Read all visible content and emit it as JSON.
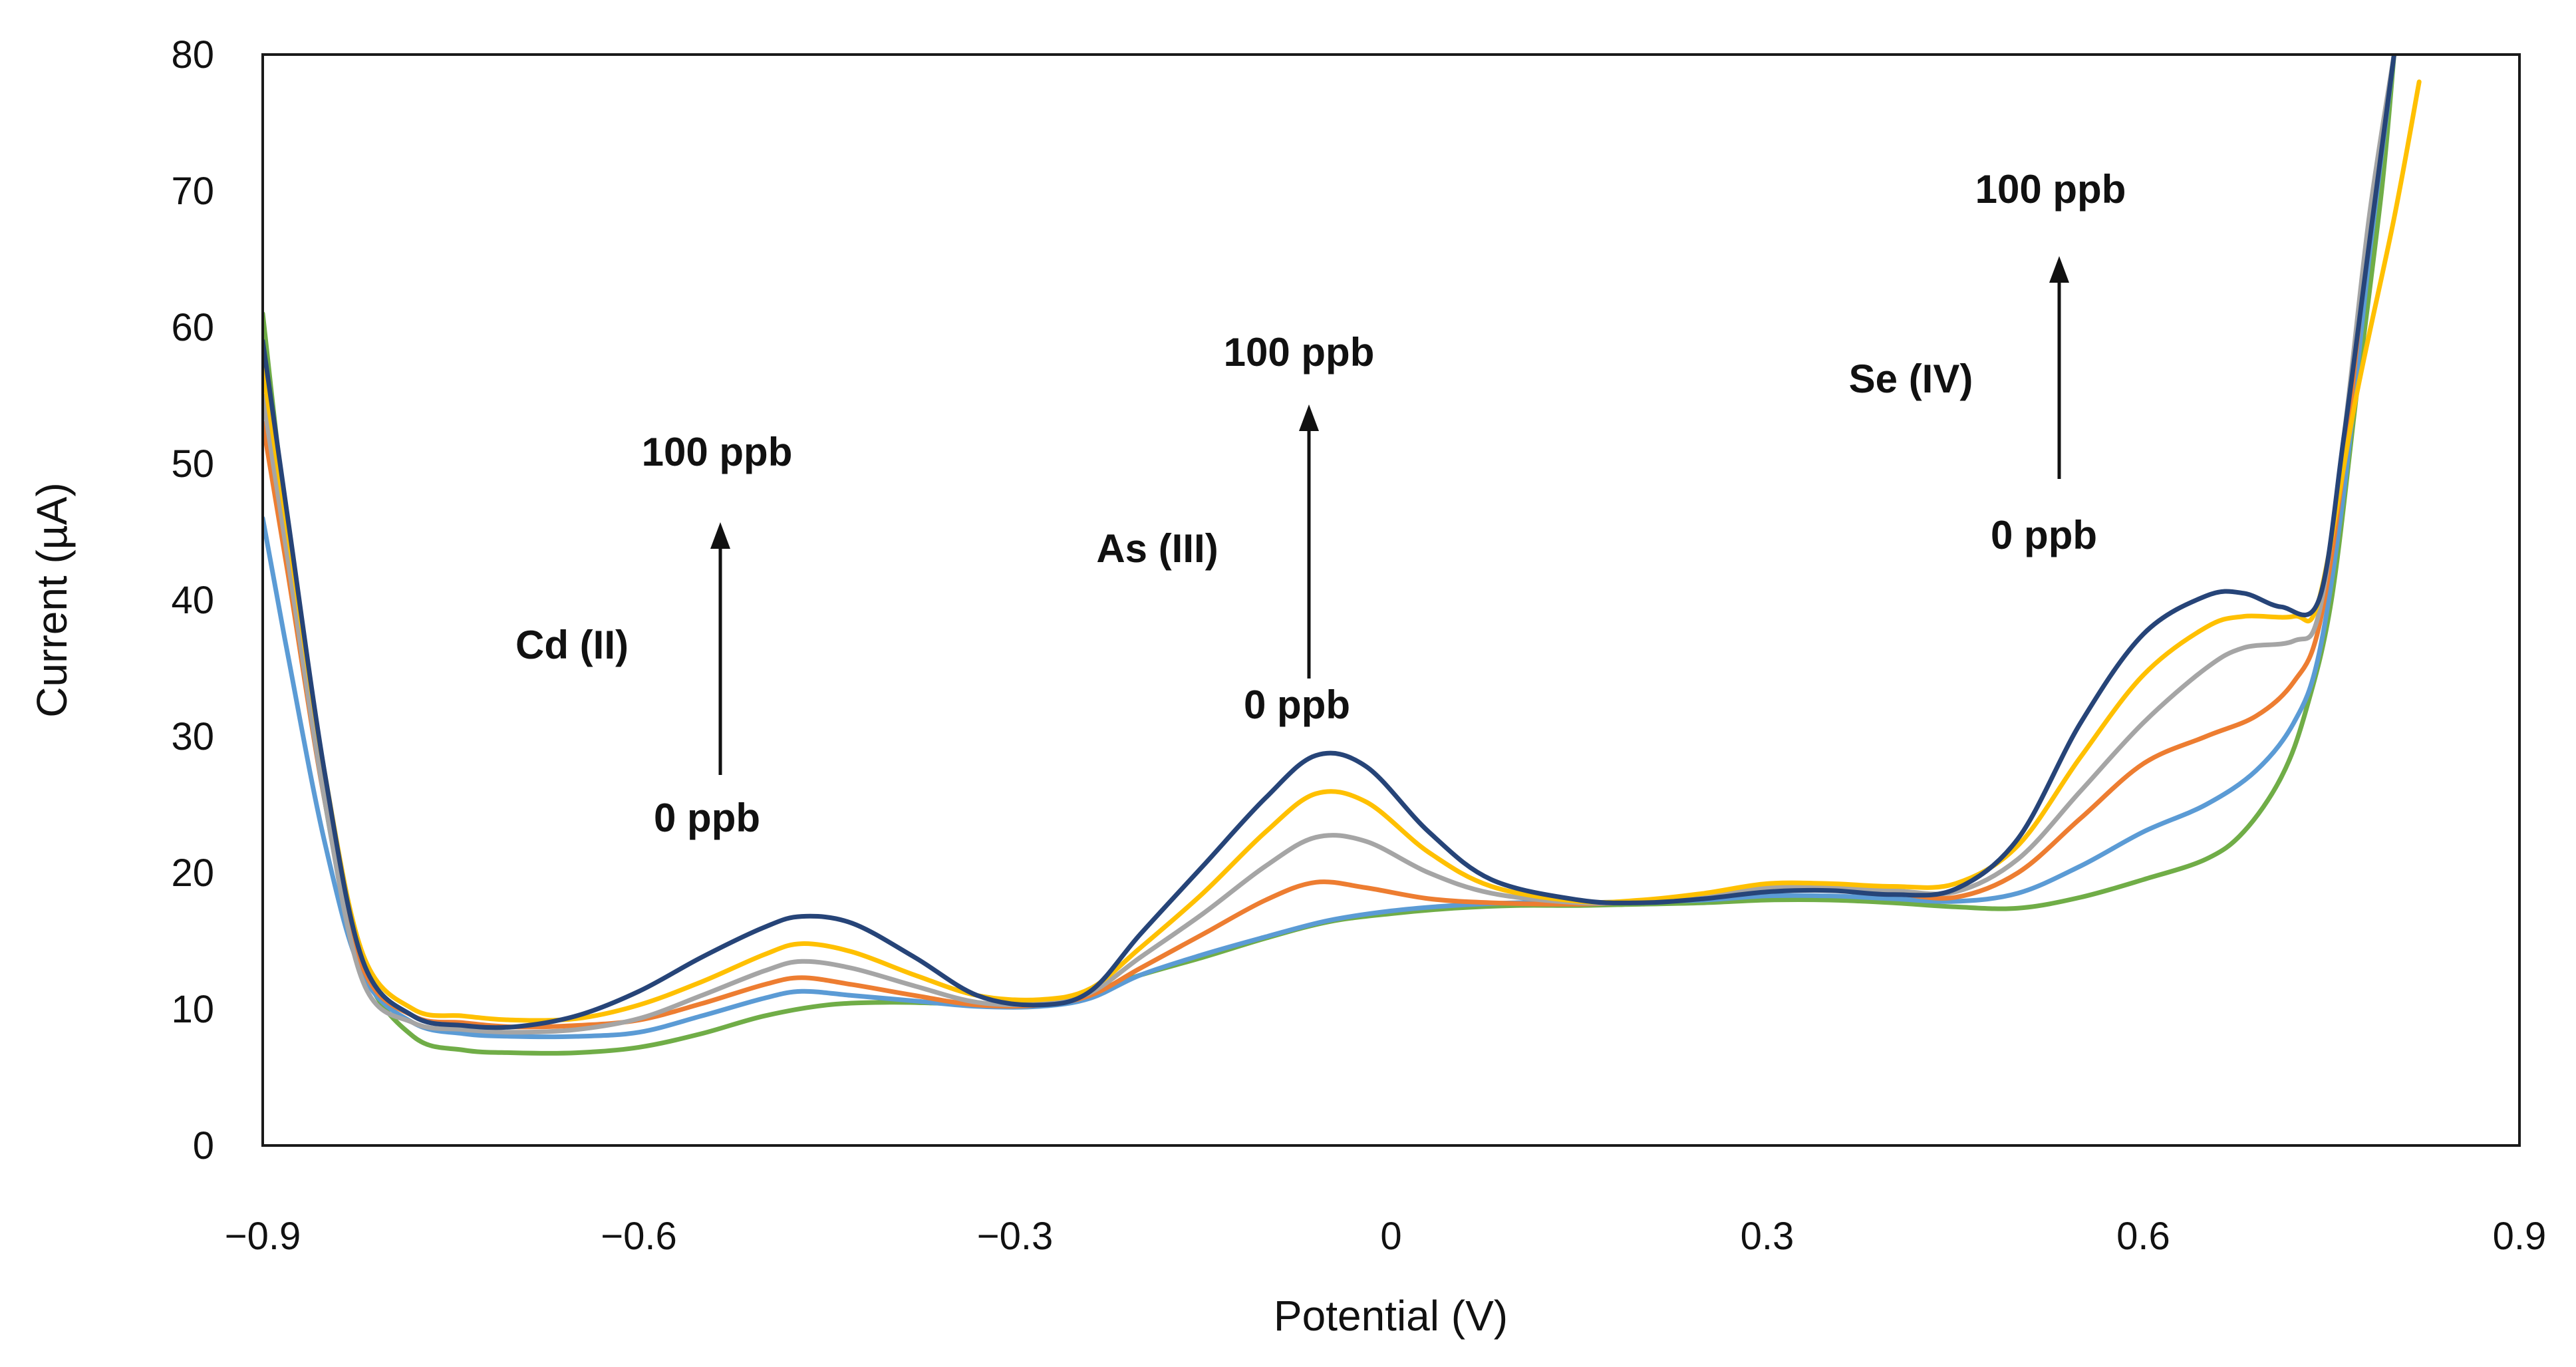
{
  "chart_data": {
    "type": "line",
    "title": "",
    "xlabel": "Potential (V)",
    "ylabel": "Current (µA)",
    "xlim": [
      -0.9,
      0.9
    ],
    "ylim": [
      0,
      80
    ],
    "x_ticks": [
      {
        "value": -0.9,
        "label": "−0.9"
      },
      {
        "value": -0.6,
        "label": "−0.6"
      },
      {
        "value": -0.3,
        "label": "−0.3"
      },
      {
        "value": 0,
        "label": "0"
      },
      {
        "value": 0.3,
        "label": "0.3"
      },
      {
        "value": 0.6,
        "label": "0.6"
      },
      {
        "value": 0.9,
        "label": "0.9"
      }
    ],
    "y_ticks": [
      {
        "value": 0,
        "label": "0"
      },
      {
        "value": 10,
        "label": "10"
      },
      {
        "value": 20,
        "label": "20"
      },
      {
        "value": 30,
        "label": "30"
      },
      {
        "value": 40,
        "label": "40"
      },
      {
        "value": 50,
        "label": "50"
      },
      {
        "value": 60,
        "label": "60"
      },
      {
        "value": 70,
        "label": "70"
      },
      {
        "value": 80,
        "label": "80"
      }
    ],
    "grid": false,
    "legend": "none",
    "series": [
      {
        "color": "#70ad47",
        "points": [
          [
            -0.9,
            61
          ],
          [
            -0.88,
            45
          ],
          [
            -0.85,
            25
          ],
          [
            -0.82,
            13
          ],
          [
            -0.78,
            8
          ],
          [
            -0.74,
            7
          ],
          [
            -0.7,
            6.8
          ],
          [
            -0.65,
            6.8
          ],
          [
            -0.6,
            7.2
          ],
          [
            -0.55,
            8.2
          ],
          [
            -0.5,
            9.5
          ],
          [
            -0.45,
            10.3
          ],
          [
            -0.4,
            10.5
          ],
          [
            -0.35,
            10.4
          ],
          [
            -0.3,
            10.3
          ],
          [
            -0.25,
            11
          ],
          [
            -0.2,
            12.5
          ],
          [
            -0.15,
            13.8
          ],
          [
            -0.1,
            15.2
          ],
          [
            -0.05,
            16.4
          ],
          [
            0,
            17
          ],
          [
            0.05,
            17.4
          ],
          [
            0.1,
            17.6
          ],
          [
            0.15,
            17.6
          ],
          [
            0.2,
            17.7
          ],
          [
            0.25,
            17.8
          ],
          [
            0.3,
            18
          ],
          [
            0.35,
            18
          ],
          [
            0.4,
            17.8
          ],
          [
            0.45,
            17.5
          ],
          [
            0.5,
            17.4
          ],
          [
            0.55,
            18.2
          ],
          [
            0.6,
            19.5
          ],
          [
            0.65,
            21
          ],
          [
            0.68,
            23
          ],
          [
            0.71,
            27
          ],
          [
            0.73,
            32
          ],
          [
            0.75,
            40
          ],
          [
            0.77,
            55
          ],
          [
            0.79,
            70
          ],
          [
            0.8,
            80
          ]
        ]
      },
      {
        "color": "#5b9bd5",
        "points": [
          [
            -0.9,
            46
          ],
          [
            -0.88,
            36
          ],
          [
            -0.85,
            22
          ],
          [
            -0.82,
            12.5
          ],
          [
            -0.78,
            9
          ],
          [
            -0.74,
            8.2
          ],
          [
            -0.7,
            8
          ],
          [
            -0.65,
            8
          ],
          [
            -0.6,
            8.3
          ],
          [
            -0.55,
            9.5
          ],
          [
            -0.5,
            10.8
          ],
          [
            -0.47,
            11.3
          ],
          [
            -0.43,
            11
          ],
          [
            -0.38,
            10.6
          ],
          [
            -0.33,
            10.2
          ],
          [
            -0.28,
            10.2
          ],
          [
            -0.24,
            10.8
          ],
          [
            -0.2,
            12.5
          ],
          [
            -0.15,
            14
          ],
          [
            -0.1,
            15.3
          ],
          [
            -0.05,
            16.5
          ],
          [
            0,
            17.2
          ],
          [
            0.05,
            17.6
          ],
          [
            0.1,
            17.8
          ],
          [
            0.15,
            17.8
          ],
          [
            0.2,
            17.9
          ],
          [
            0.25,
            18
          ],
          [
            0.3,
            18.3
          ],
          [
            0.35,
            18.3
          ],
          [
            0.4,
            18.1
          ],
          [
            0.45,
            17.9
          ],
          [
            0.5,
            18.5
          ],
          [
            0.55,
            20.5
          ],
          [
            0.6,
            23
          ],
          [
            0.65,
            25
          ],
          [
            0.69,
            27.5
          ],
          [
            0.72,
            31
          ],
          [
            0.74,
            36
          ],
          [
            0.76,
            48
          ],
          [
            0.78,
            65
          ],
          [
            0.8,
            80
          ]
        ]
      },
      {
        "color": "#ed7d31",
        "points": [
          [
            -0.9,
            53
          ],
          [
            -0.88,
            42
          ],
          [
            -0.85,
            25
          ],
          [
            -0.82,
            13
          ],
          [
            -0.78,
            9.5
          ],
          [
            -0.74,
            9
          ],
          [
            -0.7,
            8.7
          ],
          [
            -0.65,
            8.8
          ],
          [
            -0.6,
            9.2
          ],
          [
            -0.55,
            10.4
          ],
          [
            -0.5,
            11.8
          ],
          [
            -0.47,
            12.3
          ],
          [
            -0.43,
            11.8
          ],
          [
            -0.38,
            11
          ],
          [
            -0.33,
            10.3
          ],
          [
            -0.28,
            10.3
          ],
          [
            -0.24,
            11
          ],
          [
            -0.2,
            13
          ],
          [
            -0.15,
            15.5
          ],
          [
            -0.1,
            18
          ],
          [
            -0.06,
            19.3
          ],
          [
            -0.02,
            18.9
          ],
          [
            0.03,
            18.1
          ],
          [
            0.08,
            17.8
          ],
          [
            0.15,
            17.7
          ],
          [
            0.2,
            17.9
          ],
          [
            0.25,
            18.2
          ],
          [
            0.3,
            18.8
          ],
          [
            0.35,
            18.8
          ],
          [
            0.4,
            18.5
          ],
          [
            0.45,
            18.2
          ],
          [
            0.5,
            20
          ],
          [
            0.55,
            24
          ],
          [
            0.6,
            28
          ],
          [
            0.65,
            30
          ],
          [
            0.69,
            31.5
          ],
          [
            0.72,
            34
          ],
          [
            0.74,
            38
          ],
          [
            0.76,
            50
          ],
          [
            0.78,
            67
          ],
          [
            0.8,
            80
          ]
        ]
      },
      {
        "color": "#a5a5a5",
        "points": [
          [
            -0.9,
            55
          ],
          [
            -0.88,
            43
          ],
          [
            -0.85,
            25
          ],
          [
            -0.82,
            12
          ],
          [
            -0.78,
            9
          ],
          [
            -0.74,
            8.5
          ],
          [
            -0.7,
            8.3
          ],
          [
            -0.65,
            8.5
          ],
          [
            -0.6,
            9.3
          ],
          [
            -0.55,
            11
          ],
          [
            -0.5,
            12.8
          ],
          [
            -0.47,
            13.5
          ],
          [
            -0.43,
            13
          ],
          [
            -0.38,
            11.7
          ],
          [
            -0.33,
            10.5
          ],
          [
            -0.28,
            10.4
          ],
          [
            -0.24,
            11.2
          ],
          [
            -0.2,
            13.8
          ],
          [
            -0.15,
            17
          ],
          [
            -0.1,
            20.5
          ],
          [
            -0.06,
            22.6
          ],
          [
            -0.02,
            22.3
          ],
          [
            0.03,
            20
          ],
          [
            0.08,
            18.5
          ],
          [
            0.15,
            17.8
          ],
          [
            0.2,
            17.9
          ],
          [
            0.25,
            18.3
          ],
          [
            0.3,
            18.9
          ],
          [
            0.35,
            18.9
          ],
          [
            0.4,
            18.7
          ],
          [
            0.45,
            18.6
          ],
          [
            0.5,
            21
          ],
          [
            0.55,
            26
          ],
          [
            0.6,
            31
          ],
          [
            0.65,
            35
          ],
          [
            0.68,
            36.5
          ],
          [
            0.72,
            37
          ],
          [
            0.74,
            39
          ],
          [
            0.76,
            52
          ],
          [
            0.78,
            68
          ],
          [
            0.8,
            80
          ]
        ]
      },
      {
        "color": "#ffc000",
        "points": [
          [
            -0.9,
            57
          ],
          [
            -0.88,
            45
          ],
          [
            -0.85,
            27
          ],
          [
            -0.82,
            14
          ],
          [
            -0.78,
            10
          ],
          [
            -0.74,
            9.5
          ],
          [
            -0.7,
            9.2
          ],
          [
            -0.65,
            9.3
          ],
          [
            -0.6,
            10.3
          ],
          [
            -0.55,
            12
          ],
          [
            -0.5,
            14
          ],
          [
            -0.47,
            14.8
          ],
          [
            -0.43,
            14.2
          ],
          [
            -0.38,
            12.5
          ],
          [
            -0.33,
            11
          ],
          [
            -0.28,
            10.7
          ],
          [
            -0.24,
            11.5
          ],
          [
            -0.2,
            14.5
          ],
          [
            -0.15,
            18.5
          ],
          [
            -0.1,
            23
          ],
          [
            -0.06,
            25.8
          ],
          [
            -0.02,
            25.2
          ],
          [
            0.03,
            21.5
          ],
          [
            0.08,
            19
          ],
          [
            0.15,
            17.9
          ],
          [
            0.2,
            18
          ],
          [
            0.25,
            18.5
          ],
          [
            0.3,
            19.2
          ],
          [
            0.35,
            19.2
          ],
          [
            0.4,
            19
          ],
          [
            0.45,
            19.2
          ],
          [
            0.5,
            22
          ],
          [
            0.55,
            28.5
          ],
          [
            0.6,
            34.5
          ],
          [
            0.65,
            38
          ],
          [
            0.68,
            38.8
          ],
          [
            0.72,
            38.8
          ],
          [
            0.74,
            40
          ],
          [
            0.77,
            55
          ],
          [
            0.8,
            68
          ],
          [
            0.82,
            78
          ]
        ]
      },
      {
        "color": "#264478",
        "points": [
          [
            -0.9,
            59
          ],
          [
            -0.88,
            46
          ],
          [
            -0.85,
            27
          ],
          [
            -0.82,
            13.5
          ],
          [
            -0.78,
            9.5
          ],
          [
            -0.74,
            8.8
          ],
          [
            -0.7,
            8.7
          ],
          [
            -0.65,
            9.5
          ],
          [
            -0.6,
            11.3
          ],
          [
            -0.55,
            13.8
          ],
          [
            -0.5,
            16
          ],
          [
            -0.47,
            16.8
          ],
          [
            -0.43,
            16.3
          ],
          [
            -0.38,
            13.8
          ],
          [
            -0.33,
            11
          ],
          [
            -0.28,
            10.3
          ],
          [
            -0.24,
            11.3
          ],
          [
            -0.2,
            15.5
          ],
          [
            -0.15,
            20.5
          ],
          [
            -0.1,
            25.5
          ],
          [
            -0.06,
            28.6
          ],
          [
            -0.02,
            27.8
          ],
          [
            0.03,
            23
          ],
          [
            0.08,
            19.5
          ],
          [
            0.15,
            18
          ],
          [
            0.2,
            17.8
          ],
          [
            0.25,
            18.1
          ],
          [
            0.3,
            18.6
          ],
          [
            0.35,
            18.7
          ],
          [
            0.4,
            18.4
          ],
          [
            0.45,
            18.8
          ],
          [
            0.5,
            22.5
          ],
          [
            0.55,
            31
          ],
          [
            0.6,
            37.5
          ],
          [
            0.65,
            40.3
          ],
          [
            0.68,
            40.5
          ],
          [
            0.71,
            39.5
          ],
          [
            0.74,
            40
          ],
          [
            0.76,
            52
          ],
          [
            0.78,
            66
          ],
          [
            0.8,
            80
          ]
        ]
      }
    ],
    "annotations": [
      {
        "id": "cd",
        "element": "Cd (II)",
        "top": "100 ppb",
        "bottom": "0 ppb"
      },
      {
        "id": "as",
        "element": "As (III)",
        "top": "100 ppb",
        "bottom": "0 ppb"
      },
      {
        "id": "se",
        "element": "Se (IV)",
        "top": "100 ppb",
        "bottom": "0 ppb"
      }
    ]
  }
}
